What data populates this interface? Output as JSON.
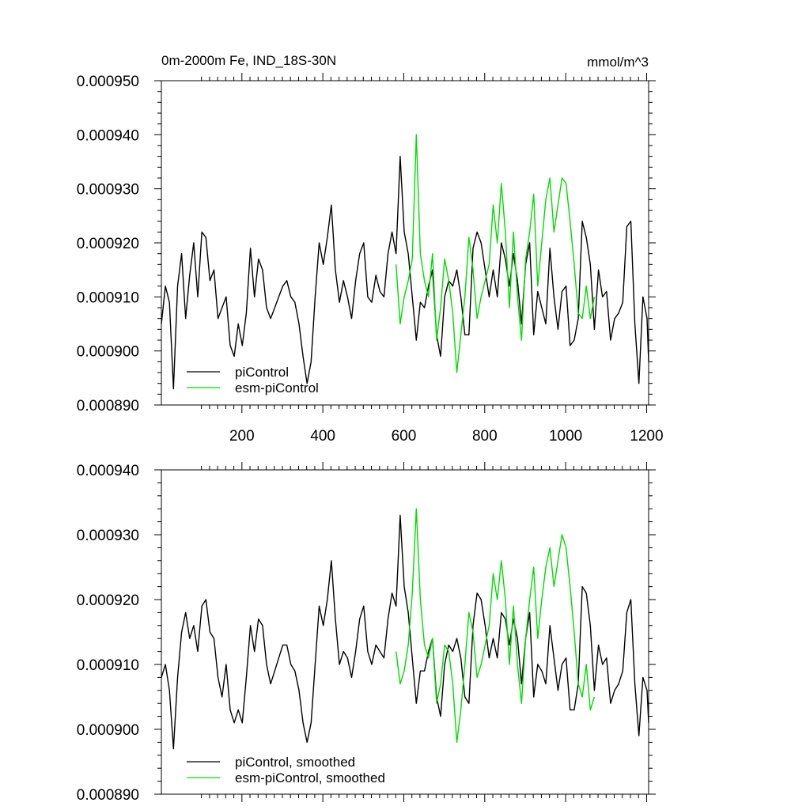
{
  "chart_data": [
    {
      "type": "line",
      "title": "0m-2000m Fe, IND_18S-30N",
      "units": "mmol/m^3",
      "xlim": [
        1,
        1205
      ],
      "ylim": [
        0.00089,
        0.00095
      ],
      "x_ticks": [
        200,
        400,
        600,
        800,
        1000,
        1200
      ],
      "x_tick_labels": [
        "200",
        "400",
        "600",
        "800",
        "1000",
        "1200"
      ],
      "y_ticks": [
        0.00089,
        0.0009,
        0.00091,
        0.00092,
        0.00093,
        0.00094,
        0.00095
      ],
      "y_tick_labels": [
        "0.000890",
        "0.000900",
        "0.000910",
        "0.000920",
        "0.000930",
        "0.000940",
        "0.000950"
      ],
      "legend_position": "bottom-left",
      "series": [
        {
          "name": "piControl",
          "color": "#000000",
          "x_start": 1,
          "x_step": 10,
          "values": [
            0.000905,
            0.000912,
            0.000909,
            0.000893,
            0.000912,
            0.000918,
            0.000906,
            0.000914,
            0.00092,
            0.00091,
            0.000922,
            0.000921,
            0.000913,
            0.000915,
            0.000906,
            0.000908,
            0.00091,
            0.000901,
            0.000899,
            0.000905,
            0.000901,
            0.000907,
            0.000919,
            0.00091,
            0.000917,
            0.000915,
            0.000908,
            0.000906,
            0.000908,
            0.00091,
            0.000912,
            0.000913,
            0.00091,
            0.000909,
            0.000905,
            0.000899,
            0.000894,
            0.000898,
            0.00091,
            0.00092,
            0.000916,
            0.000921,
            0.000927,
            0.000915,
            0.000909,
            0.000913,
            0.00091,
            0.000906,
            0.000913,
            0.000918,
            0.00092,
            0.00091,
            0.000909,
            0.000914,
            0.000911,
            0.00091,
            0.000918,
            0.000922,
            0.000918,
            0.000936,
            0.000922,
            0.000918,
            0.00091,
            0.000902,
            0.000909,
            0.000908,
            0.000912,
            0.000915,
            0.000903,
            0.000899,
            0.00091,
            0.000913,
            0.000912,
            0.000915,
            0.00091,
            0.000903,
            0.000903,
            0.000919,
            0.000922,
            0.00092,
            0.000915,
            0.00091,
            0.000915,
            0.00091,
            0.00092,
            0.000917,
            0.000912,
            0.000918,
            0.000913,
            0.000905,
            0.000916,
            0.00092,
            0.000903,
            0.000911,
            0.000908,
            0.000905,
            0.000919,
            0.00091,
            0.000904,
            0.000911,
            0.000912,
            0.000901,
            0.000902,
            0.000906,
            0.000924,
            0.000921,
            0.000916,
            0.000904,
            0.000915,
            0.00091,
            0.000911,
            0.000902,
            0.000906,
            0.000907,
            0.000909,
            0.000923,
            0.000924,
            0.000905,
            0.000894,
            0.00091,
            0.000906,
            0.000898
          ]
        },
        {
          "name": "esm-piControl",
          "color": "#00dd00",
          "x_start": 581,
          "x_step": 10,
          "values": [
            0.000916,
            0.000905,
            0.00091,
            0.000913,
            0.000917,
            0.00094,
            0.000918,
            0.000913,
            0.00091,
            0.000918,
            0.000902,
            0.000908,
            0.000917,
            0.000913,
            0.000907,
            0.000896,
            0.000903,
            0.00091,
            0.000921,
            0.000915,
            0.000906,
            0.00091,
            0.000913,
            0.000916,
            0.000927,
            0.00092,
            0.000931,
            0.000922,
            0.000908,
            0.000922,
            0.00091,
            0.000902,
            0.000917,
            0.000922,
            0.000929,
            0.000912,
            0.00092,
            0.000928,
            0.000932,
            0.000922,
            0.000927,
            0.000932,
            0.000931,
            0.000924,
            0.000916,
            0.000907,
            0.000906,
            0.000912,
            0.000906,
            0.00091
          ]
        }
      ]
    },
    {
      "type": "line",
      "xlim": [
        1,
        1205
      ],
      "ylim": [
        0.00089,
        0.00094
      ],
      "x_ticks": [
        200,
        400,
        600,
        800,
        1000,
        1200
      ],
      "y_ticks": [
        0.00089,
        0.0009,
        0.00091,
        0.00092,
        0.00093,
        0.00094
      ],
      "y_tick_labels": [
        "0.000890",
        "0.000900",
        "0.000910",
        "0.000920",
        "0.000930",
        "0.000940"
      ],
      "legend_position": "bottom-left",
      "series": [
        {
          "name": "piControl, smoothed",
          "color": "#000000",
          "x_start": 1,
          "x_step": 10,
          "values": [
            0.000908,
            0.00091,
            0.000906,
            0.000897,
            0.000908,
            0.000915,
            0.000918,
            0.000914,
            0.000916,
            0.000912,
            0.000919,
            0.00092,
            0.000915,
            0.000914,
            0.000908,
            0.000905,
            0.00091,
            0.000903,
            0.000901,
            0.000903,
            0.000901,
            0.000908,
            0.000916,
            0.000912,
            0.000917,
            0.000916,
            0.00091,
            0.000907,
            0.000909,
            0.000911,
            0.000913,
            0.000913,
            0.00091,
            0.000909,
            0.000906,
            0.000901,
            0.000898,
            0.000901,
            0.00091,
            0.000919,
            0.000916,
            0.00092,
            0.000926,
            0.000917,
            0.00091,
            0.000912,
            0.000911,
            0.000908,
            0.000912,
            0.000917,
            0.000919,
            0.000912,
            0.00091,
            0.000913,
            0.000912,
            0.000911,
            0.000917,
            0.000921,
            0.000919,
            0.000933,
            0.000922,
            0.000918,
            0.000911,
            0.000904,
            0.000909,
            0.000909,
            0.000912,
            0.000914,
            0.000905,
            0.000902,
            0.00091,
            0.000913,
            0.000912,
            0.000914,
            0.000911,
            0.000905,
            0.000904,
            0.000916,
            0.000921,
            0.00092,
            0.000916,
            0.000911,
            0.000914,
            0.000911,
            0.000918,
            0.000917,
            0.000913,
            0.000917,
            0.000914,
            0.000907,
            0.000914,
            0.000918,
            0.000905,
            0.00091,
            0.000909,
            0.000907,
            0.000916,
            0.000911,
            0.000906,
            0.00091,
            0.000911,
            0.000903,
            0.000903,
            0.000907,
            0.000922,
            0.000921,
            0.000916,
            0.000906,
            0.000913,
            0.00091,
            0.000911,
            0.000904,
            0.000906,
            0.000907,
            0.000909,
            0.000918,
            0.00092,
            0.000907,
            0.000899,
            0.000908,
            0.000906,
            0.000901
          ]
        },
        {
          "name": "esm-piControl, smoothed",
          "color": "#00dd00",
          "x_start": 581,
          "x_step": 10,
          "values": [
            0.000912,
            0.000907,
            0.000909,
            0.000913,
            0.000921,
            0.000934,
            0.00092,
            0.000913,
            0.000911,
            0.000914,
            0.000904,
            0.000907,
            0.000913,
            0.000912,
            0.000907,
            0.000898,
            0.000903,
            0.00091,
            0.000918,
            0.000915,
            0.000908,
            0.00091,
            0.000913,
            0.000916,
            0.000924,
            0.00092,
            0.000926,
            0.00092,
            0.00091,
            0.000919,
            0.00091,
            0.000904,
            0.000914,
            0.00092,
            0.000925,
            0.000914,
            0.00092,
            0.000925,
            0.000928,
            0.000922,
            0.000926,
            0.00093,
            0.000928,
            0.000922,
            0.000915,
            0.000907,
            0.000905,
            0.00091,
            0.000903,
            0.000905
          ]
        }
      ]
    }
  ]
}
